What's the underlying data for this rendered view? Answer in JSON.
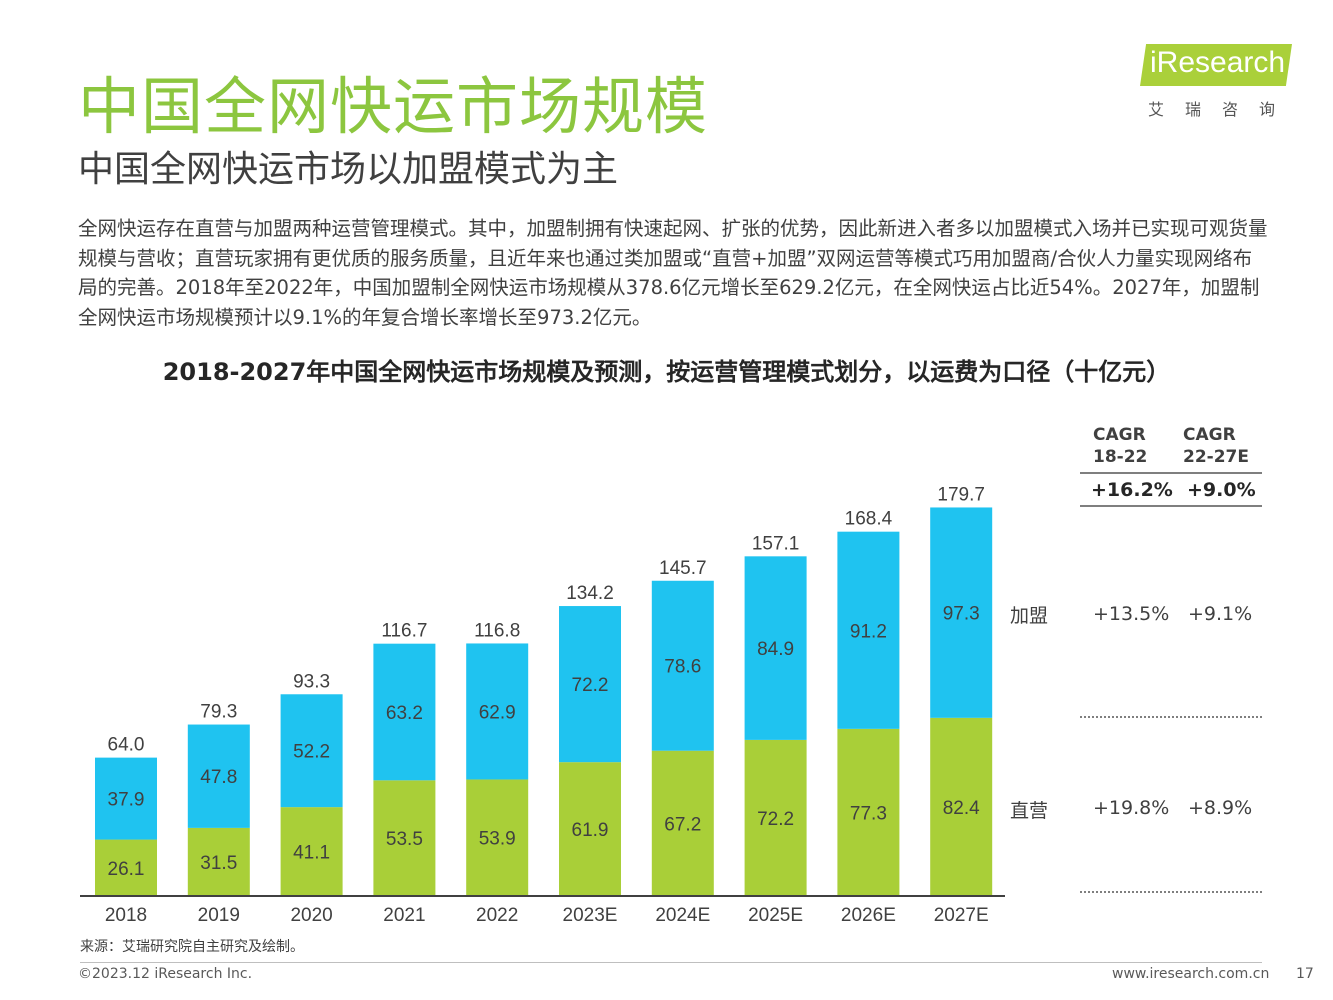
{
  "page": {
    "title": "中国全网快运市场规模",
    "subtitle": "中国全网快运市场以加盟模式为主",
    "description": "全网快运存在直营与加盟两种运营管理模式。其中，加盟制拥有快速起网、扩张的优势，因此新进入者多以加盟模式入场并已实现可观货量规模与营收；直营玩家拥有更优质的服务质量，且近年来也通过类加盟或“直营+加盟”双网运营等模式巧用加盟商/合伙人力量实现网络布局的完善。2018年至2022年，中国加盟制全网快运市场规模从378.6亿元增长至629.2亿元，在全网快运占比近54%。2027年，加盟制全网快运市场规模预计以9.1%的年复合增长率增长至973.2亿元。",
    "source": "来源：艾瑞研究院自主研究及绘制。",
    "copyright": "©2023.12 iResearch Inc.",
    "website": "www.iresearch.com.cn",
    "page_number": "17"
  },
  "logo": {
    "brand": "iResearch",
    "cn": "艾瑞咨询"
  },
  "colors": {
    "title_green": "#8cc63f",
    "franchise": "#1fc3f0",
    "direct": "#a9cf38",
    "axis": "#404040"
  },
  "chart_data": {
    "type": "bar",
    "stacked": true,
    "title": "2018-2027年中国全网快运市场规模及预测，按运营管理模式划分，以运费为口径（十亿元）",
    "categories": [
      "2018",
      "2019",
      "2020",
      "2021",
      "2022",
      "2023E",
      "2024E",
      "2025E",
      "2026E",
      "2027E"
    ],
    "series": [
      {
        "name": "直营",
        "values": [
          26.1,
          31.5,
          41.1,
          53.5,
          53.9,
          61.9,
          67.2,
          72.2,
          77.3,
          82.4
        ]
      },
      {
        "name": "加盟",
        "values": [
          37.9,
          47.8,
          52.2,
          63.2,
          62.9,
          72.2,
          78.6,
          84.9,
          91.2,
          97.3
        ]
      }
    ],
    "totals": [
      "64.0",
      "79.3",
      "93.3",
      "116.7",
      "116.8",
      "134.2",
      "145.7",
      "157.1",
      "168.4",
      "179.7"
    ],
    "ylim": [
      0,
      185
    ],
    "grid": false,
    "legend": "right",
    "cagr": {
      "headers": [
        "CAGR\n18-22",
        "CAGR\n22-27E"
      ],
      "total": [
        "+16.2%",
        "+9.0%"
      ],
      "加盟": [
        "+13.5%",
        "+9.1%"
      ],
      "直营": [
        "+19.8%",
        "+8.9%"
      ]
    }
  }
}
